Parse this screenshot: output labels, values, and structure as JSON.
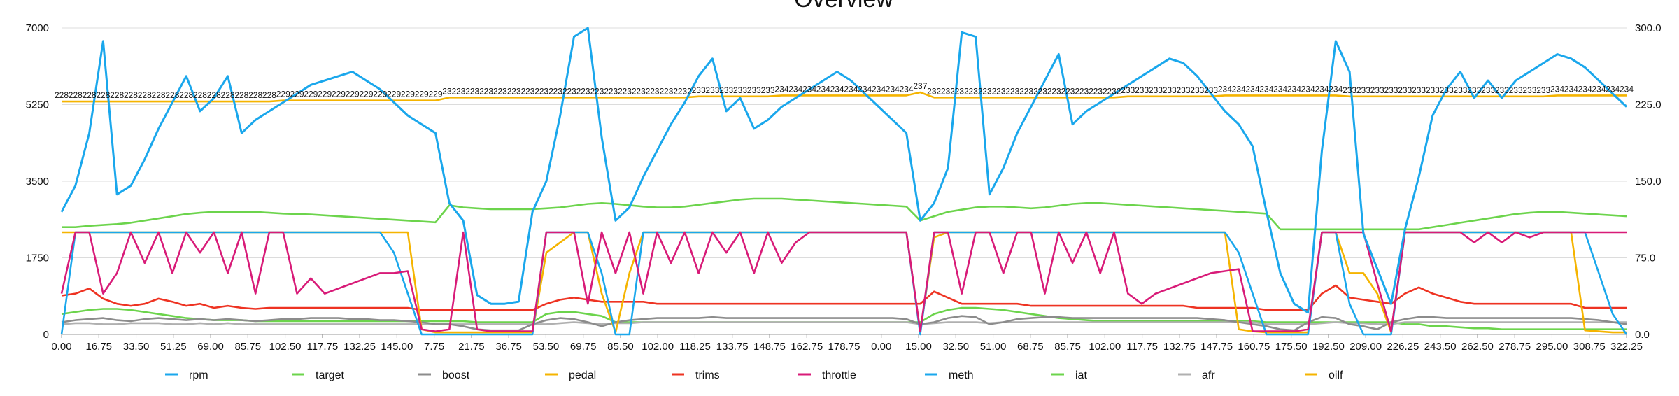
{
  "chart_data": {
    "type": "line",
    "title": "Overview",
    "y_left": {
      "lim": [
        0,
        7000
      ],
      "ticks": [
        "0",
        "1750",
        "3500",
        "5250",
        "7000"
      ]
    },
    "y_right": {
      "lim": [
        0,
        300
      ],
      "ticks": [
        "0.0",
        "75.0",
        "150.0",
        "225.0",
        "300.0"
      ]
    },
    "x_ticks": [
      "0.00",
      "16.75",
      "33.50",
      "51.25",
      "69.00",
      "85.75",
      "102.50",
      "117.75",
      "132.25",
      "145.00",
      "7.75",
      "21.75",
      "36.75",
      "53.50",
      "69.75",
      "85.50",
      "102.00",
      "118.25",
      "133.75",
      "148.75",
      "162.75",
      "178.75",
      "0.00",
      "15.00",
      "32.50",
      "51.00",
      "68.75",
      "85.75",
      "102.00",
      "117.75",
      "132.75",
      "147.75",
      "160.75",
      "175.50",
      "192.50",
      "209.00",
      "226.25",
      "243.50",
      "262.50",
      "278.75",
      "295.00",
      "308.75",
      "322.25"
    ],
    "legend_position": "bottom",
    "grid": "horizontal",
    "series": [
      {
        "name": "rpm",
        "axis": "left",
        "color": "#1aa7ec",
        "values": [
          2800,
          3400,
          4600,
          6700,
          3200,
          3400,
          4000,
          4700,
          5300,
          5900,
          5100,
          5400,
          5900,
          4600,
          4900,
          5100,
          5300,
          5500,
          5700,
          5800,
          5900,
          6000,
          5800,
          5600,
          5300,
          5000,
          4800,
          4600,
          3000,
          2600,
          900,
          700,
          700,
          750,
          2800,
          3500,
          5000,
          6800,
          7000,
          4500,
          2600,
          2900,
          3600,
          4200,
          4800,
          5300,
          5900,
          6300,
          5100,
          5400,
          4700,
          4900,
          5200,
          5400,
          5600,
          5800,
          6000,
          5800,
          5500,
          5200,
          4900,
          4600,
          2600,
          3000,
          3800,
          6900,
          6800,
          3200,
          3800,
          4600,
          5200,
          5800,
          6400,
          4800,
          5100,
          5300,
          5500,
          5700,
          5900,
          6100,
          6300,
          6200,
          5900,
          5500,
          5100,
          4800,
          4300,
          2800,
          1400,
          700,
          500,
          4200,
          6700,
          6000,
          2300,
          1500,
          700,
          2400,
          3600,
          5000,
          5600,
          6000,
          5400,
          5800,
          5400,
          5800,
          6000,
          6200,
          6400,
          6300,
          6100,
          5800,
          5500,
          5200
        ]
      },
      {
        "name": "target",
        "axis": "left",
        "color": "#6cd44c",
        "values": [
          2450,
          2450,
          2480,
          2500,
          2520,
          2550,
          2600,
          2650,
          2700,
          2750,
          2780,
          2800,
          2800,
          2800,
          2800,
          2780,
          2760,
          2750,
          2740,
          2720,
          2700,
          2680,
          2660,
          2640,
          2620,
          2600,
          2580,
          2560,
          2950,
          2900,
          2880,
          2860,
          2860,
          2860,
          2860,
          2880,
          2900,
          2940,
          2980,
          3000,
          2980,
          2950,
          2920,
          2900,
          2900,
          2920,
          2960,
          3000,
          3040,
          3080,
          3100,
          3100,
          3100,
          3080,
          3060,
          3040,
          3020,
          3000,
          2980,
          2960,
          2940,
          2920,
          2600,
          2700,
          2800,
          2850,
          2900,
          2920,
          2920,
          2900,
          2880,
          2900,
          2940,
          2980,
          3000,
          3000,
          2980,
          2960,
          2940,
          2920,
          2900,
          2880,
          2860,
          2840,
          2820,
          2800,
          2780,
          2760,
          2400,
          2400,
          2400,
          2400,
          2400,
          2400,
          2400,
          2400,
          2400,
          2400,
          2400,
          2450,
          2500,
          2550,
          2600,
          2650,
          2700,
          2750,
          2780,
          2800,
          2800,
          2780,
          2760,
          2740,
          2720,
          2700
        ]
      },
      {
        "name": "boost",
        "axis": "right",
        "color": "#8c8c8c",
        "values": [
          12,
          14,
          15,
          16,
          14,
          13,
          15,
          16,
          15,
          14,
          15,
          14,
          15,
          14,
          13,
          14,
          15,
          15,
          16,
          16,
          16,
          15,
          15,
          14,
          14,
          13,
          12,
          10,
          10,
          8,
          5,
          4,
          4,
          4,
          10,
          14,
          16,
          15,
          12,
          8,
          12,
          14,
          15,
          16,
          16,
          16,
          16,
          17,
          16,
          16,
          16,
          16,
          16,
          16,
          16,
          16,
          16,
          16,
          16,
          16,
          16,
          15,
          10,
          12,
          16,
          18,
          17,
          10,
          12,
          15,
          16,
          17,
          17,
          16,
          16,
          16,
          16,
          16,
          16,
          16,
          16,
          16,
          16,
          15,
          14,
          12,
          10,
          8,
          5,
          4,
          12,
          17,
          16,
          10,
          8,
          5,
          12,
          15,
          17,
          17,
          16,
          16,
          16,
          16,
          16,
          16,
          16,
          16,
          16,
          16,
          15,
          14,
          12,
          10
        ]
      },
      {
        "name": "pedal",
        "axis": "right",
        "color": "#f5b400",
        "values": [
          100,
          100,
          100,
          100,
          100,
          100,
          100,
          100,
          100,
          100,
          100,
          100,
          100,
          100,
          100,
          100,
          100,
          100,
          100,
          100,
          100,
          100,
          100,
          100,
          100,
          100,
          5,
          2,
          2,
          2,
          2,
          2,
          2,
          2,
          2,
          80,
          90,
          100,
          100,
          40,
          2,
          60,
          100,
          100,
          100,
          100,
          100,
          100,
          100,
          100,
          100,
          100,
          100,
          100,
          100,
          100,
          100,
          100,
          100,
          100,
          100,
          100,
          2,
          95,
          100,
          100,
          100,
          100,
          100,
          100,
          100,
          100,
          100,
          100,
          100,
          100,
          100,
          100,
          100,
          100,
          100,
          100,
          100,
          100,
          100,
          5,
          3,
          2,
          2,
          2,
          2,
          100,
          100,
          60,
          60,
          40,
          2,
          100,
          100,
          100,
          100,
          100,
          100,
          100,
          100,
          100,
          100,
          100,
          100,
          100,
          4,
          3,
          2,
          2
        ]
      },
      {
        "name": "trims",
        "axis": "right",
        "color": "#ee3322",
        "values": [
          38,
          40,
          45,
          35,
          30,
          28,
          30,
          35,
          32,
          28,
          30,
          26,
          28,
          26,
          25,
          26,
          26,
          26,
          26,
          26,
          26,
          26,
          26,
          26,
          26,
          26,
          24,
          24,
          24,
          24,
          24,
          24,
          24,
          24,
          24,
          30,
          34,
          36,
          34,
          32,
          32,
          32,
          32,
          30,
          30,
          30,
          30,
          30,
          30,
          30,
          30,
          30,
          30,
          30,
          30,
          30,
          30,
          30,
          30,
          30,
          30,
          30,
          30,
          42,
          36,
          30,
          30,
          30,
          30,
          30,
          28,
          28,
          28,
          28,
          28,
          28,
          28,
          28,
          28,
          28,
          28,
          28,
          26,
          26,
          26,
          26,
          26,
          24,
          24,
          24,
          24,
          40,
          48,
          36,
          34,
          32,
          30,
          40,
          46,
          40,
          36,
          32,
          30,
          30,
          30,
          30,
          30,
          30,
          30,
          30,
          26,
          26,
          26,
          26
        ]
      },
      {
        "name": "throttle",
        "axis": "right",
        "color": "#d81b78",
        "values": [
          40,
          100,
          100,
          40,
          60,
          100,
          70,
          100,
          60,
          100,
          80,
          100,
          60,
          100,
          40,
          100,
          100,
          40,
          55,
          40,
          45,
          50,
          55,
          60,
          60,
          62,
          5,
          3,
          5,
          100,
          5,
          3,
          3,
          3,
          3,
          100,
          100,
          100,
          30,
          100,
          60,
          100,
          40,
          100,
          70,
          100,
          60,
          100,
          80,
          100,
          60,
          100,
          70,
          90,
          100,
          100,
          100,
          100,
          100,
          100,
          100,
          100,
          3,
          100,
          100,
          40,
          100,
          100,
          60,
          100,
          100,
          40,
          100,
          70,
          100,
          60,
          100,
          40,
          30,
          40,
          45,
          50,
          55,
          60,
          62,
          64,
          3,
          3,
          3,
          3,
          5,
          100,
          100,
          100,
          100,
          50,
          3,
          100,
          100,
          100,
          100,
          100,
          90,
          100,
          90,
          100,
          95,
          100,
          100,
          100,
          100,
          100,
          100,
          100
        ]
      },
      {
        "name": "meth",
        "axis": "right",
        "color": "#1aa7ec",
        "values": [
          0,
          100,
          100,
          100,
          100,
          100,
          100,
          100,
          100,
          100,
          100,
          100,
          100,
          100,
          100,
          100,
          100,
          100,
          100,
          100,
          100,
          100,
          100,
          100,
          80,
          40,
          0,
          0,
          0,
          0,
          0,
          0,
          0,
          0,
          0,
          100,
          100,
          100,
          100,
          60,
          0,
          0,
          100,
          100,
          100,
          100,
          100,
          100,
          100,
          100,
          100,
          100,
          100,
          100,
          100,
          100,
          100,
          100,
          100,
          100,
          100,
          100,
          0,
          100,
          100,
          100,
          100,
          100,
          100,
          100,
          100,
          100,
          100,
          100,
          100,
          100,
          100,
          100,
          100,
          100,
          100,
          100,
          100,
          100,
          100,
          80,
          40,
          0,
          0,
          0,
          0,
          100,
          100,
          30,
          0,
          0,
          0,
          100,
          100,
          100,
          100,
          100,
          100,
          100,
          100,
          100,
          100,
          100,
          100,
          100,
          100,
          60,
          20,
          0
        ]
      },
      {
        "name": "iat",
        "axis": "right",
        "color": "#6cd44c",
        "values": [
          20,
          22,
          24,
          25,
          25,
          24,
          22,
          20,
          18,
          16,
          15,
          14,
          14,
          14,
          13,
          13,
          13,
          13,
          13,
          13,
          13,
          13,
          13,
          13,
          13,
          13,
          13,
          13,
          13,
          13,
          12,
          12,
          12,
          12,
          12,
          20,
          22,
          22,
          20,
          18,
          12,
          12,
          12,
          12,
          12,
          12,
          12,
          12,
          12,
          12,
          12,
          12,
          12,
          12,
          12,
          12,
          12,
          12,
          12,
          12,
          12,
          12,
          12,
          20,
          24,
          26,
          26,
          25,
          24,
          22,
          20,
          18,
          16,
          15,
          14,
          13,
          13,
          13,
          13,
          13,
          13,
          13,
          13,
          13,
          13,
          13,
          13,
          12,
          12,
          12,
          12,
          12,
          12,
          12,
          12,
          12,
          12,
          10,
          10,
          8,
          8,
          7,
          6,
          6,
          5,
          5,
          5,
          5,
          5,
          5,
          5,
          5,
          5,
          5
        ]
      },
      {
        "name": "afr",
        "axis": "right",
        "color": "#b0b0b0",
        "values": [
          10,
          11,
          11,
          10,
          10,
          11,
          11,
          11,
          10,
          10,
          11,
          10,
          11,
          10,
          10,
          10,
          10,
          10,
          10,
          10,
          10,
          10,
          10,
          10,
          10,
          10,
          10,
          10,
          10,
          10,
          10,
          10,
          10,
          10,
          10,
          10,
          11,
          12,
          11,
          10,
          11,
          11,
          12,
          12,
          12,
          12,
          12,
          12,
          12,
          12,
          12,
          12,
          12,
          12,
          12,
          12,
          12,
          12,
          12,
          12,
          12,
          12,
          10,
          11,
          12,
          12,
          12,
          11,
          12,
          12,
          12,
          12,
          12,
          12,
          12,
          12,
          12,
          12,
          12,
          12,
          12,
          12,
          12,
          12,
          12,
          12,
          12,
          10,
          10,
          10,
          10,
          11,
          12,
          11,
          11,
          10,
          10,
          12,
          12,
          12,
          12,
          12,
          12,
          12,
          12,
          12,
          12,
          12,
          12,
          12,
          12,
          12,
          12,
          12
        ]
      },
      {
        "name": "oilf",
        "axis": "right",
        "color": "#f5b400",
        "values": [
          228,
          228,
          228,
          228,
          228,
          228,
          228,
          228,
          228,
          228,
          228,
          228,
          228,
          228,
          228,
          228,
          229,
          229,
          229,
          229,
          229,
          229,
          229,
          229,
          229,
          229,
          229,
          229,
          232,
          232,
          232,
          232,
          232,
          232,
          232,
          232,
          232,
          232,
          232,
          232,
          232,
          232,
          232,
          232,
          232,
          232,
          233,
          233,
          233,
          233,
          233,
          233,
          234,
          234,
          234,
          234,
          234,
          234,
          234,
          234,
          234,
          234,
          237,
          232,
          232,
          232,
          232,
          232,
          232,
          232,
          232,
          232,
          232,
          232,
          232,
          232,
          232,
          233,
          233,
          233,
          233,
          233,
          233,
          233,
          234,
          234,
          234,
          234,
          234,
          234,
          234,
          234,
          234,
          233,
          233,
          233,
          233,
          233,
          233,
          233,
          233,
          233,
          233,
          233,
          233,
          233,
          233,
          233,
          234,
          234,
          234,
          234,
          234,
          234
        ]
      }
    ]
  }
}
